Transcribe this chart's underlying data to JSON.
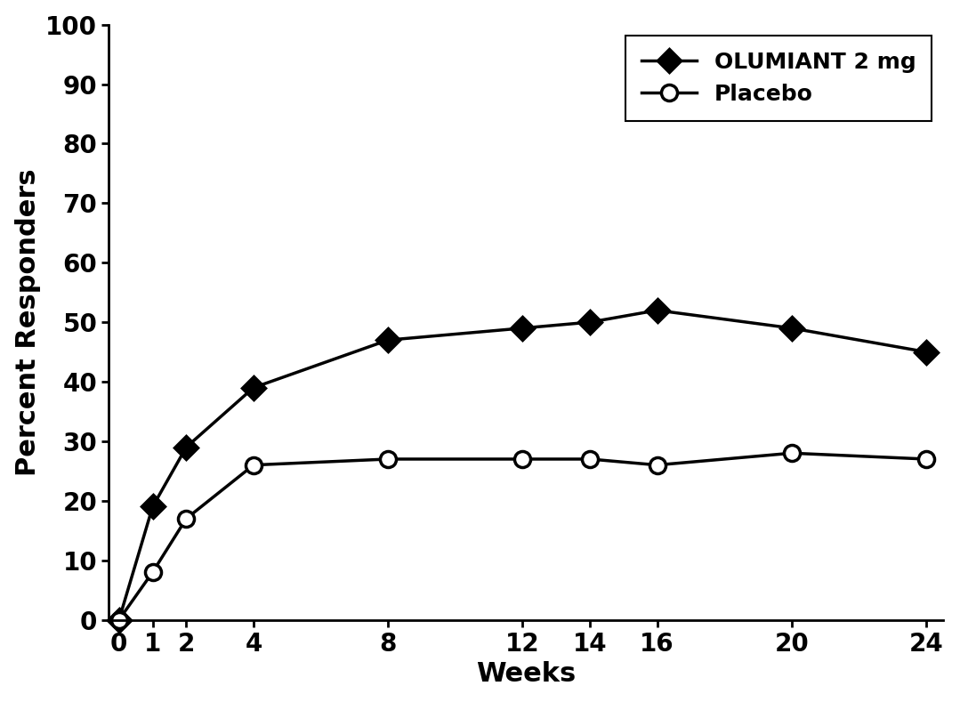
{
  "olumiant_x": [
    0,
    1,
    2,
    4,
    8,
    12,
    14,
    16,
    20,
    24
  ],
  "olumiant_y": [
    0,
    19,
    29,
    39,
    47,
    49,
    50,
    52,
    49,
    45
  ],
  "placebo_x": [
    0,
    1,
    2,
    4,
    8,
    12,
    14,
    16,
    20,
    24
  ],
  "placebo_y": [
    0,
    8,
    17,
    26,
    27,
    27,
    27,
    26,
    28,
    27
  ],
  "xlabel": "Weeks",
  "ylabel": "Percent Responders",
  "xlim": [
    -0.3,
    24.5
  ],
  "ylim": [
    0,
    100
  ],
  "yticks": [
    0,
    10,
    20,
    30,
    40,
    50,
    60,
    70,
    80,
    90,
    100
  ],
  "xticks": [
    0,
    1,
    2,
    4,
    8,
    12,
    14,
    16,
    20,
    24
  ],
  "olumiant_label": "OLUMIANT 2 mg",
  "placebo_label": "Placebo",
  "line_color": "#000000",
  "background_color": "#ffffff",
  "legend_loc": "upper right",
  "label_fontsize": 22,
  "tick_fontsize": 20,
  "legend_fontsize": 18,
  "linewidth": 2.5,
  "marker_size_diamond": 13,
  "marker_size_circle": 13,
  "marker_edge_width": 2.5
}
